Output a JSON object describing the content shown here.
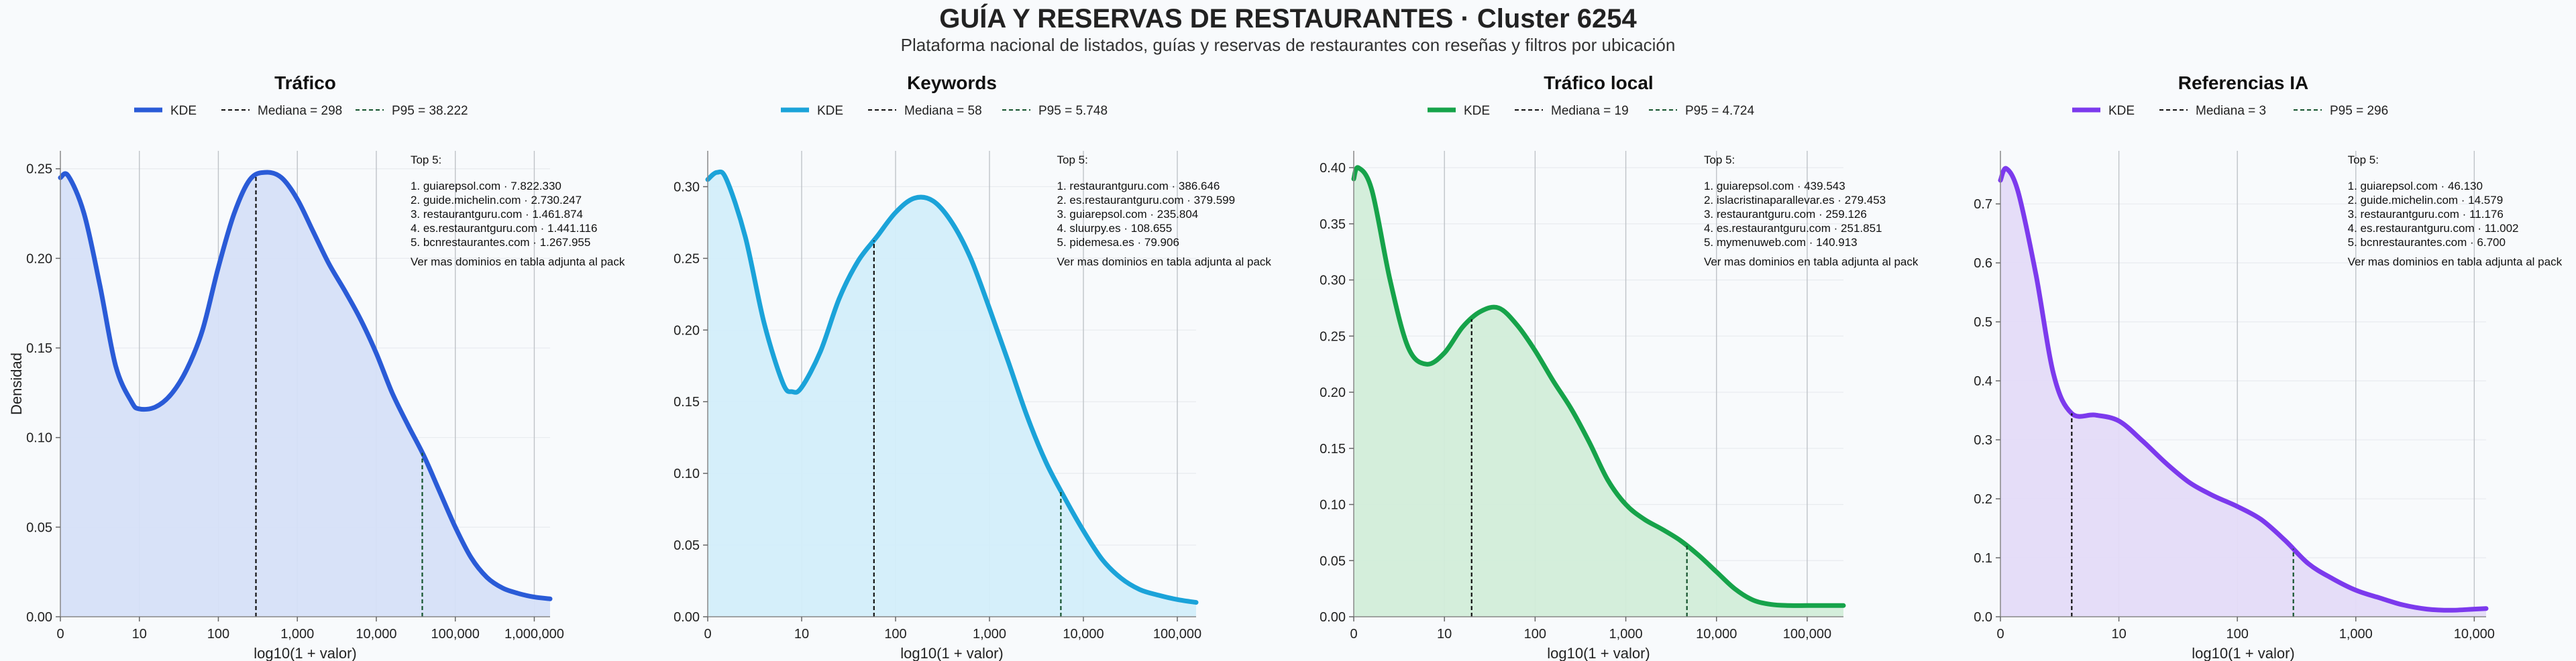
{
  "header": {
    "title": "GUÍA Y RESERVAS DE RESTAURANTES · Cluster 6254",
    "subtitle": "Plataforma nacional de listados, guías y reservas de restaurantes con reseñas y filtros por ubicación"
  },
  "chart_data": [
    {
      "type": "area",
      "title": "Tráfico",
      "xlabel": "log10(1 + valor)",
      "ylabel": "Densidad",
      "color": "#2a5bd7",
      "fill": "#d6e0f8",
      "xlim": [
        0,
        6.2
      ],
      "ylim": [
        0,
        0.26
      ],
      "xtick_labels": [
        "0",
        "10",
        "100",
        "1,000",
        "10,000",
        "100,000",
        "1,000,000"
      ],
      "ytick_labels": [
        "0.00",
        "0.05",
        "0.10",
        "0.15",
        "0.20",
        "0.25"
      ],
      "yticks": [
        0,
        0.05,
        0.1,
        0.15,
        0.2,
        0.25
      ],
      "legend": {
        "kde_label": "KDE",
        "median_label": "Mediana = 298",
        "p95_label": "P95 = 38.222"
      },
      "median_x": 2.476,
      "p95_x": 4.582,
      "kde": {
        "x": [
          0,
          0.1,
          0.3,
          0.5,
          0.7,
          0.9,
          1.0,
          1.2,
          1.4,
          1.6,
          1.8,
          2.0,
          2.2,
          2.4,
          2.6,
          2.8,
          3.0,
          3.2,
          3.4,
          3.6,
          3.8,
          4.0,
          4.2,
          4.4,
          4.6,
          4.8,
          5.0,
          5.2,
          5.4,
          5.6,
          5.8,
          6.0,
          6.2
        ],
        "y": [
          0.245,
          0.246,
          0.225,
          0.185,
          0.14,
          0.12,
          0.116,
          0.117,
          0.124,
          0.138,
          0.16,
          0.195,
          0.225,
          0.244,
          0.248,
          0.245,
          0.233,
          0.215,
          0.197,
          0.182,
          0.166,
          0.147,
          0.125,
          0.107,
          0.09,
          0.07,
          0.05,
          0.033,
          0.022,
          0.016,
          0.013,
          0.011,
          0.01
        ]
      },
      "top5_title": "Top 5:",
      "top5": [
        "1. guiarepsol.com · 7.822.330",
        "2. guide.michelin.com · 2.730.247",
        "3. restaurantguru.com · 1.461.874",
        "4. es.restaurantguru.com · 1.441.116",
        "5. bcnrestaurantes.com · 1.267.955"
      ],
      "footnote": "Ver mas dominios en tabla adjunta al pack"
    },
    {
      "type": "area",
      "title": "Keywords",
      "xlabel": "log10(1 + valor)",
      "ylabel": "",
      "color": "#1ba3d9",
      "fill": "#d3eefa",
      "xlim": [
        0,
        5.2
      ],
      "ylim": [
        0,
        0.325
      ],
      "xtick_labels": [
        "0",
        "10",
        "100",
        "1,000",
        "10,000",
        "100,000"
      ],
      "ytick_labels": [
        "0.00",
        "0.05",
        "0.10",
        "0.15",
        "0.20",
        "0.25",
        "0.30"
      ],
      "yticks": [
        0,
        0.05,
        0.1,
        0.15,
        0.2,
        0.25,
        0.3
      ],
      "legend": {
        "kde_label": "KDE",
        "median_label": "Mediana = 58",
        "p95_label": "P95 = 5.748"
      },
      "median_x": 1.77,
      "p95_x": 3.76,
      "kde": {
        "x": [
          0,
          0.1,
          0.2,
          0.4,
          0.6,
          0.8,
          0.9,
          1.0,
          1.2,
          1.4,
          1.6,
          1.8,
          2.0,
          2.2,
          2.4,
          2.6,
          2.8,
          3.0,
          3.2,
          3.4,
          3.6,
          3.8,
          4.0,
          4.2,
          4.4,
          4.6,
          4.8,
          5.0,
          5.2
        ],
        "y": [
          0.305,
          0.31,
          0.305,
          0.265,
          0.205,
          0.163,
          0.157,
          0.16,
          0.185,
          0.222,
          0.248,
          0.265,
          0.282,
          0.292,
          0.29,
          0.275,
          0.25,
          0.215,
          0.178,
          0.14,
          0.108,
          0.083,
          0.06,
          0.04,
          0.027,
          0.019,
          0.015,
          0.012,
          0.01
        ]
      },
      "top5_title": "Top 5:",
      "top5": [
        "1. restaurantguru.com · 386.646",
        "2. es.restaurantguru.com · 379.599",
        "3. guiarepsol.com · 235.804",
        "4. sluurpy.es · 108.655",
        "5. pidemesa.es · 79.906"
      ],
      "footnote": "Ver mas dominios en tabla adjunta al pack"
    },
    {
      "type": "area",
      "title": "Tráfico local",
      "xlabel": "log10(1 + valor)",
      "ylabel": "",
      "color": "#16a34a",
      "fill": "#d2edd9",
      "xlim": [
        0,
        5.4
      ],
      "ylim": [
        0,
        0.415
      ],
      "xtick_labels": [
        "0",
        "10",
        "100",
        "1,000",
        "10,000",
        "100,000"
      ],
      "ytick_labels": [
        "0.00",
        "0.05",
        "0.10",
        "0.15",
        "0.20",
        "0.25",
        "0.30",
        "0.35",
        "0.40"
      ],
      "yticks": [
        0,
        0.05,
        0.1,
        0.15,
        0.2,
        0.25,
        0.3,
        0.35,
        0.4
      ],
      "legend": {
        "kde_label": "KDE",
        "median_label": "Mediana = 19",
        "p95_label": "P95 = 4.724"
      },
      "median_x": 1.3,
      "p95_x": 3.674,
      "kde": {
        "x": [
          0,
          0.05,
          0.2,
          0.4,
          0.6,
          0.8,
          1.0,
          1.2,
          1.4,
          1.6,
          1.8,
          2.0,
          2.2,
          2.4,
          2.6,
          2.8,
          3.0,
          3.2,
          3.4,
          3.6,
          3.8,
          4.0,
          4.2,
          4.4,
          4.6,
          4.8,
          5.0,
          5.2,
          5.4
        ],
        "y": [
          0.39,
          0.4,
          0.38,
          0.3,
          0.24,
          0.225,
          0.235,
          0.258,
          0.272,
          0.275,
          0.26,
          0.237,
          0.21,
          0.185,
          0.155,
          0.122,
          0.1,
          0.087,
          0.078,
          0.068,
          0.055,
          0.04,
          0.025,
          0.015,
          0.011,
          0.01,
          0.01,
          0.01,
          0.01
        ]
      },
      "top5_title": "Top 5:",
      "top5": [
        "1. guiarepsol.com · 439.543",
        "2. islacristinaparallevar.es · 279.453",
        "3. restaurantguru.com · 259.126",
        "4. es.restaurantguru.com · 251.851",
        "5. mymenuweb.com · 140.913"
      ],
      "footnote": "Ver mas dominios en tabla adjunta al pack"
    },
    {
      "type": "area",
      "title": "Referencias IA",
      "xlabel": "log10(1 + valor)",
      "ylabel": "",
      "color": "#7c3aed",
      "fill": "#e4dbf8",
      "xlim": [
        0,
        4.1
      ],
      "ylim": [
        0,
        0.79
      ],
      "xtick_labels": [
        "0",
        "10",
        "100",
        "1,000",
        "10,000"
      ],
      "ytick_labels": [
        "0.0",
        "0.1",
        "0.2",
        "0.3",
        "0.4",
        "0.5",
        "0.6",
        "0.7"
      ],
      "yticks": [
        0,
        0.1,
        0.2,
        0.3,
        0.4,
        0.5,
        0.6,
        0.7
      ],
      "legend": {
        "kde_label": "KDE",
        "median_label": "Mediana = 3",
        "p95_label": "P95 = 296"
      },
      "median_x": 0.602,
      "p95_x": 2.473,
      "kde": {
        "x": [
          0,
          0.05,
          0.15,
          0.3,
          0.45,
          0.6,
          0.8,
          1.0,
          1.2,
          1.4,
          1.6,
          1.8,
          2.0,
          2.2,
          2.4,
          2.6,
          2.8,
          3.0,
          3.2,
          3.4,
          3.6,
          3.8,
          4.0,
          4.1
        ],
        "y": [
          0.74,
          0.76,
          0.72,
          0.58,
          0.41,
          0.345,
          0.342,
          0.332,
          0.298,
          0.26,
          0.227,
          0.205,
          0.187,
          0.165,
          0.13,
          0.09,
          0.065,
          0.045,
          0.032,
          0.02,
          0.013,
          0.011,
          0.013,
          0.014
        ]
      },
      "top5_title": "Top 5:",
      "top5": [
        "1. guiarepsol.com · 46.130",
        "2. guide.michelin.com · 14.579",
        "3. restaurantguru.com · 11.176",
        "4. es.restaurantguru.com · 11.002",
        "5. bcnrestaurantes.com · 6.700"
      ],
      "footnote": "Ver mas dominios en tabla adjunta al pack"
    }
  ]
}
